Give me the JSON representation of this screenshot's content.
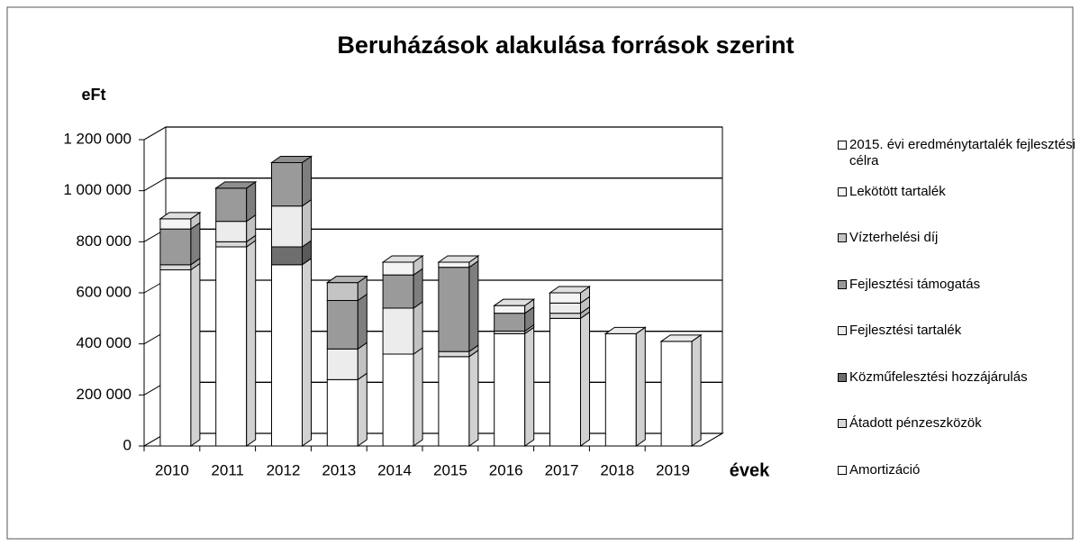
{
  "chart_data": {
    "type": "bar3d_stacked",
    "title": "Beruházások alakulása források szerint",
    "y_label": "eFt",
    "x_label": "évek",
    "categories": [
      "2010",
      "2011",
      "2012",
      "2013",
      "2014",
      "2015",
      "2016",
      "2017",
      "2018",
      "2019"
    ],
    "series": [
      {
        "name": "Amortizáció",
        "color": "#ffffff",
        "values": [
          690000,
          780000,
          710000,
          260000,
          360000,
          350000,
          440000,
          500000,
          440000,
          410000
        ]
      },
      {
        "name": "Átadott pénzeszközök",
        "color": "#d9d9d9",
        "values": [
          20000,
          20000,
          0,
          0,
          0,
          20000,
          10000,
          20000,
          0,
          0
        ]
      },
      {
        "name": "Közműfelesztési hozzájárulás",
        "color": "#6e6e6e",
        "values": [
          0,
          0,
          70000,
          0,
          0,
          0,
          0,
          0,
          0,
          0
        ]
      },
      {
        "name": "Fejlesztési tartalék",
        "color": "#ececec",
        "values": [
          0,
          80000,
          160000,
          120000,
          180000,
          0,
          0,
          40000,
          0,
          0
        ]
      },
      {
        "name": "Fejlesztési támogatás",
        "color": "#9a9a9a",
        "values": [
          140000,
          130000,
          170000,
          190000,
          130000,
          330000,
          70000,
          0,
          0,
          0
        ]
      },
      {
        "name": "Vízterhelési díj",
        "color": "#c4c4c4",
        "values": [
          0,
          0,
          0,
          70000,
          0,
          0,
          0,
          0,
          0,
          0
        ]
      },
      {
        "name": "Lekötött tartalék",
        "color": "#f4f4f4",
        "values": [
          40000,
          0,
          0,
          0,
          50000,
          20000,
          30000,
          40000,
          0,
          0
        ]
      },
      {
        "name": "2015. évi eredménytartalék fejlesztési célra",
        "color": "#fbfbfb",
        "values": [
          0,
          0,
          0,
          0,
          0,
          0,
          0,
          0,
          0,
          0
        ]
      }
    ],
    "ylim": [
      0,
      1200000
    ],
    "yticks": [
      0,
      {
        "value": 200000,
        "label": "200 000"
      },
      {
        "value": 400000,
        "label": "400 000"
      },
      {
        "value": 600000,
        "label": "600 000"
      },
      {
        "value": 800000,
        "label": "800 000"
      },
      {
        "value": 1000000,
        "label": "1 000 000"
      },
      {
        "value": 1200000,
        "label": "1 200 000"
      }
    ],
    "grid": true,
    "legend": "right"
  }
}
